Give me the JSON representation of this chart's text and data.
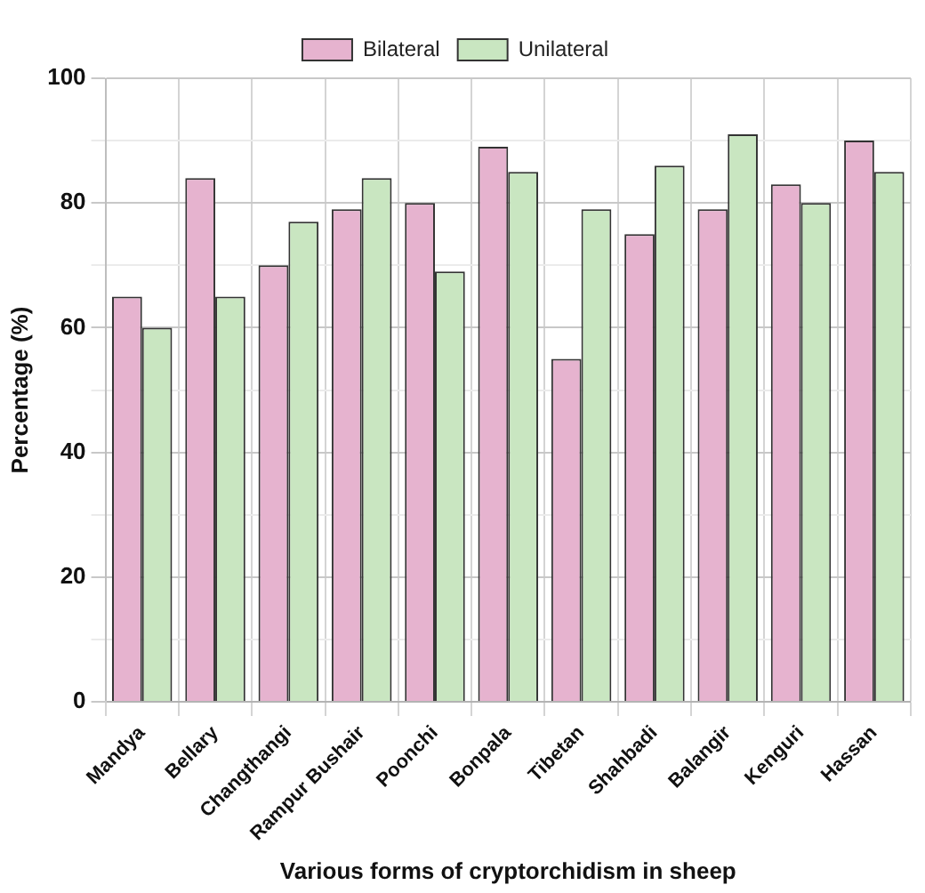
{
  "chart_data": {
    "type": "bar",
    "xlabel": "Various forms of cryptorchidism in sheep",
    "ylabel": "Percentage (%)",
    "categories": [
      "Mandya",
      "Bellary",
      "Changthangi",
      "Rampur Bushair",
      "Poonchi",
      "Bonpala",
      "Tibetan",
      "Shahbadi",
      "Balangir",
      "Kenguri",
      "Hassan"
    ],
    "series": [
      {
        "name": "Bilateral",
        "color": "#e6b3cf",
        "values": [
          65,
          84,
          70,
          79,
          80,
          89,
          55,
          75,
          79,
          83,
          90
        ]
      },
      {
        "name": "Unilateral",
        "color": "#c9e6c1",
        "values": [
          60,
          65,
          77,
          84,
          69,
          85,
          79,
          86,
          91,
          80,
          85
        ]
      }
    ],
    "ylim": [
      0,
      100
    ],
    "yticks": [
      0,
      {
        "value": 10,
        "label": null
      },
      20,
      {
        "value": 30,
        "label": null
      },
      40,
      {
        "value": 50,
        "label": null
      },
      60,
      {
        "value": 70,
        "label": null
      },
      80,
      {
        "value": 90,
        "label": null
      },
      100
    ],
    "grid": true,
    "legend": "top"
  }
}
